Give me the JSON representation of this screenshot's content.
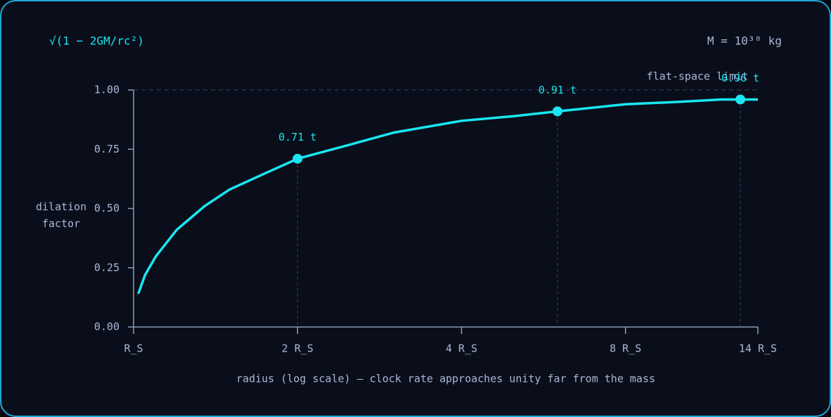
{
  "chart_data": {
    "type": "line",
    "title": "√(1 − 2GM/rc²)",
    "subtitle": "M = 10³⁰ kg",
    "y_label": "dilation factor",
    "x_label": "radius (log scale) — clock rate approaches unity far from the mass",
    "annotation": "flat-space limit",
    "x_scale": "log",
    "xlim": [
      1,
      14
    ],
    "xticks": [
      {
        "value": 1,
        "label": "R_S"
      },
      {
        "value": 2,
        "label": "2 R_S"
      },
      {
        "value": 4,
        "label": "4 R_S"
      },
      {
        "value": 8,
        "label": "8 R_S"
      },
      {
        "value": 14,
        "label": "14 R_S"
      }
    ],
    "ylim": [
      0,
      1
    ],
    "yticks": [
      {
        "value": 0,
        "label": "0.00"
      },
      {
        "value": 0.25,
        "label": "0.25"
      },
      {
        "value": 0.5,
        "label": "0.50"
      },
      {
        "value": 0.75,
        "label": "0.75"
      },
      {
        "value": 1,
        "label": "1.00"
      }
    ],
    "reference_line": 1,
    "color": "#19e6f0",
    "x": [
      1.02,
      1.05,
      1.1,
      1.2,
      1.35,
      1.5,
      1.75,
      2,
      2.5,
      3,
      4,
      5,
      6,
      8,
      10,
      12,
      14
    ],
    "values": [
      0.14,
      0.22,
      0.3,
      0.41,
      0.51,
      0.58,
      0.65,
      0.71,
      0.77,
      0.82,
      0.87,
      0.89,
      0.91,
      0.94,
      0.95,
      0.96,
      0.96
    ],
    "points": {
      "x": [
        2,
        6,
        13
      ],
      "values": [
        0.71,
        0.91,
        0.96
      ],
      "value_labels": [
        "0.71 t",
        "0.91 t",
        "0.96 t"
      ]
    }
  }
}
